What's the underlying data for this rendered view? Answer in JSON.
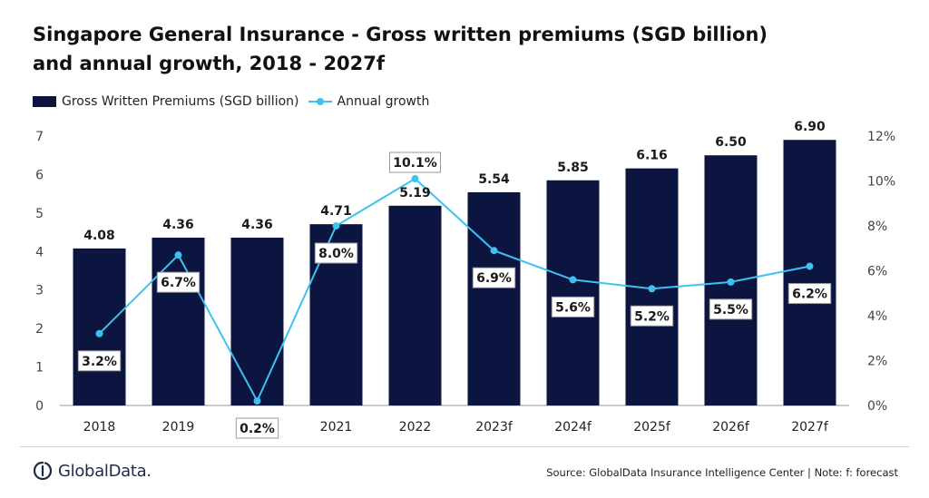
{
  "header": {
    "title_line1": "Singapore General Insurance - Gross written premiums (SGD billion)",
    "title_line2": "and annual growth, 2018 - 2027f"
  },
  "legend": {
    "bar_label": "Gross Written Premiums (SGD billion)",
    "line_label": "Annual growth"
  },
  "footer": {
    "logo_text": "GlobalData.",
    "source": "Source: GlobalData Insurance Intelligence Center | Note: f: forecast"
  },
  "colors": {
    "bar": "#0c1540",
    "line": "#3fc1f0",
    "axis": "#444444",
    "grid": "#e6e6e6"
  },
  "icons": {
    "logo": "globaldata-logo-icon"
  },
  "chart_data": {
    "type": "bar",
    "categories": [
      "2018",
      "2019",
      "2020",
      "2021",
      "2022",
      "2023f",
      "2024f",
      "2025f",
      "2026f",
      "2027f"
    ],
    "series": [
      {
        "name": "Gross Written Premiums (SGD billion)",
        "type": "bar",
        "axis": "left",
        "values": [
          4.08,
          4.36,
          4.36,
          4.71,
          5.19,
          5.54,
          5.85,
          6.16,
          6.5,
          6.9
        ],
        "labels": [
          "4.08",
          "4.36",
          "4.36",
          "4.71",
          "5.19",
          "5.54",
          "5.85",
          "6.16",
          "6.50",
          "6.90"
        ]
      },
      {
        "name": "Annual growth",
        "type": "line",
        "axis": "right",
        "values": [
          3.2,
          6.7,
          0.2,
          8.0,
          10.1,
          6.9,
          5.6,
          5.2,
          5.5,
          6.2
        ],
        "labels": [
          "3.2%",
          "6.7%",
          "0.2%",
          "8.0%",
          "10.1%",
          "6.9%",
          "5.6%",
          "5.2%",
          "5.5%",
          "6.2%"
        ]
      }
    ],
    "y_left": {
      "min": 0,
      "max": 7,
      "ticks": [
        "0",
        "1",
        "2",
        "3",
        "4",
        "5",
        "6",
        "7"
      ]
    },
    "y_right": {
      "min": 0,
      "max": 12,
      "ticks": [
        "0%",
        "2%",
        "4%",
        "6%",
        "8%",
        "10%",
        "12%"
      ]
    },
    "grid": false,
    "legend_position": "top-left"
  }
}
